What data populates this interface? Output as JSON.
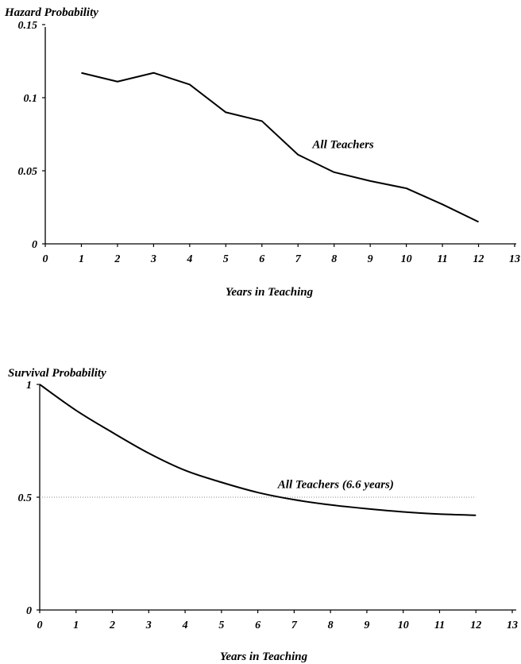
{
  "chart_data": [
    {
      "type": "line",
      "ylabel": "Hazard Probability",
      "xlabel": "Years in Teaching",
      "xlim": [
        0,
        13
      ],
      "ylim": [
        0,
        0.15
      ],
      "xticks": [
        "0",
        "1",
        "2",
        "3",
        "4",
        "5",
        "6",
        "7",
        "8",
        "9",
        "10",
        "11",
        "12",
        "13"
      ],
      "yticks": [
        "0",
        "0.05",
        "0.1",
        "0.15"
      ],
      "series": [
        {
          "name": "All Teachers",
          "x": [
            1,
            2,
            3,
            4,
            5,
            6,
            7,
            8,
            9,
            10,
            11,
            12
          ],
          "y": [
            0.117,
            0.111,
            0.117,
            0.109,
            0.09,
            0.084,
            0.061,
            0.049,
            0.043,
            0.038,
            0.027,
            0.015
          ]
        }
      ],
      "annotation": {
        "text": "All Teachers",
        "x": 7.4,
        "y": 0.0655
      },
      "grid": false
    },
    {
      "type": "line",
      "ylabel": "Survival Probability",
      "xlabel": "Years in Teaching",
      "xlim": [
        0,
        13
      ],
      "ylim": [
        0,
        1
      ],
      "xticks": [
        "0",
        "1",
        "2",
        "3",
        "4",
        "5",
        "6",
        "7",
        "8",
        "9",
        "10",
        "11",
        "12",
        "13"
      ],
      "yticks": [
        "0",
        "0.5",
        "1"
      ],
      "reference_line": {
        "y": 0.5,
        "x_end": 12
      },
      "series": [
        {
          "name": "All Teachers (6.6 years)",
          "x": [
            0,
            1,
            2,
            3,
            4,
            5,
            6,
            7,
            8,
            9,
            10,
            11,
            12
          ],
          "y": [
            1.0,
            0.885,
            0.787,
            0.695,
            0.619,
            0.566,
            0.521,
            0.489,
            0.466,
            0.449,
            0.435,
            0.425,
            0.42
          ]
        }
      ],
      "annotation": {
        "text": "All Teachers (6.6 years)",
        "x": 6.55,
        "y": 0.54
      },
      "grid": false
    }
  ]
}
